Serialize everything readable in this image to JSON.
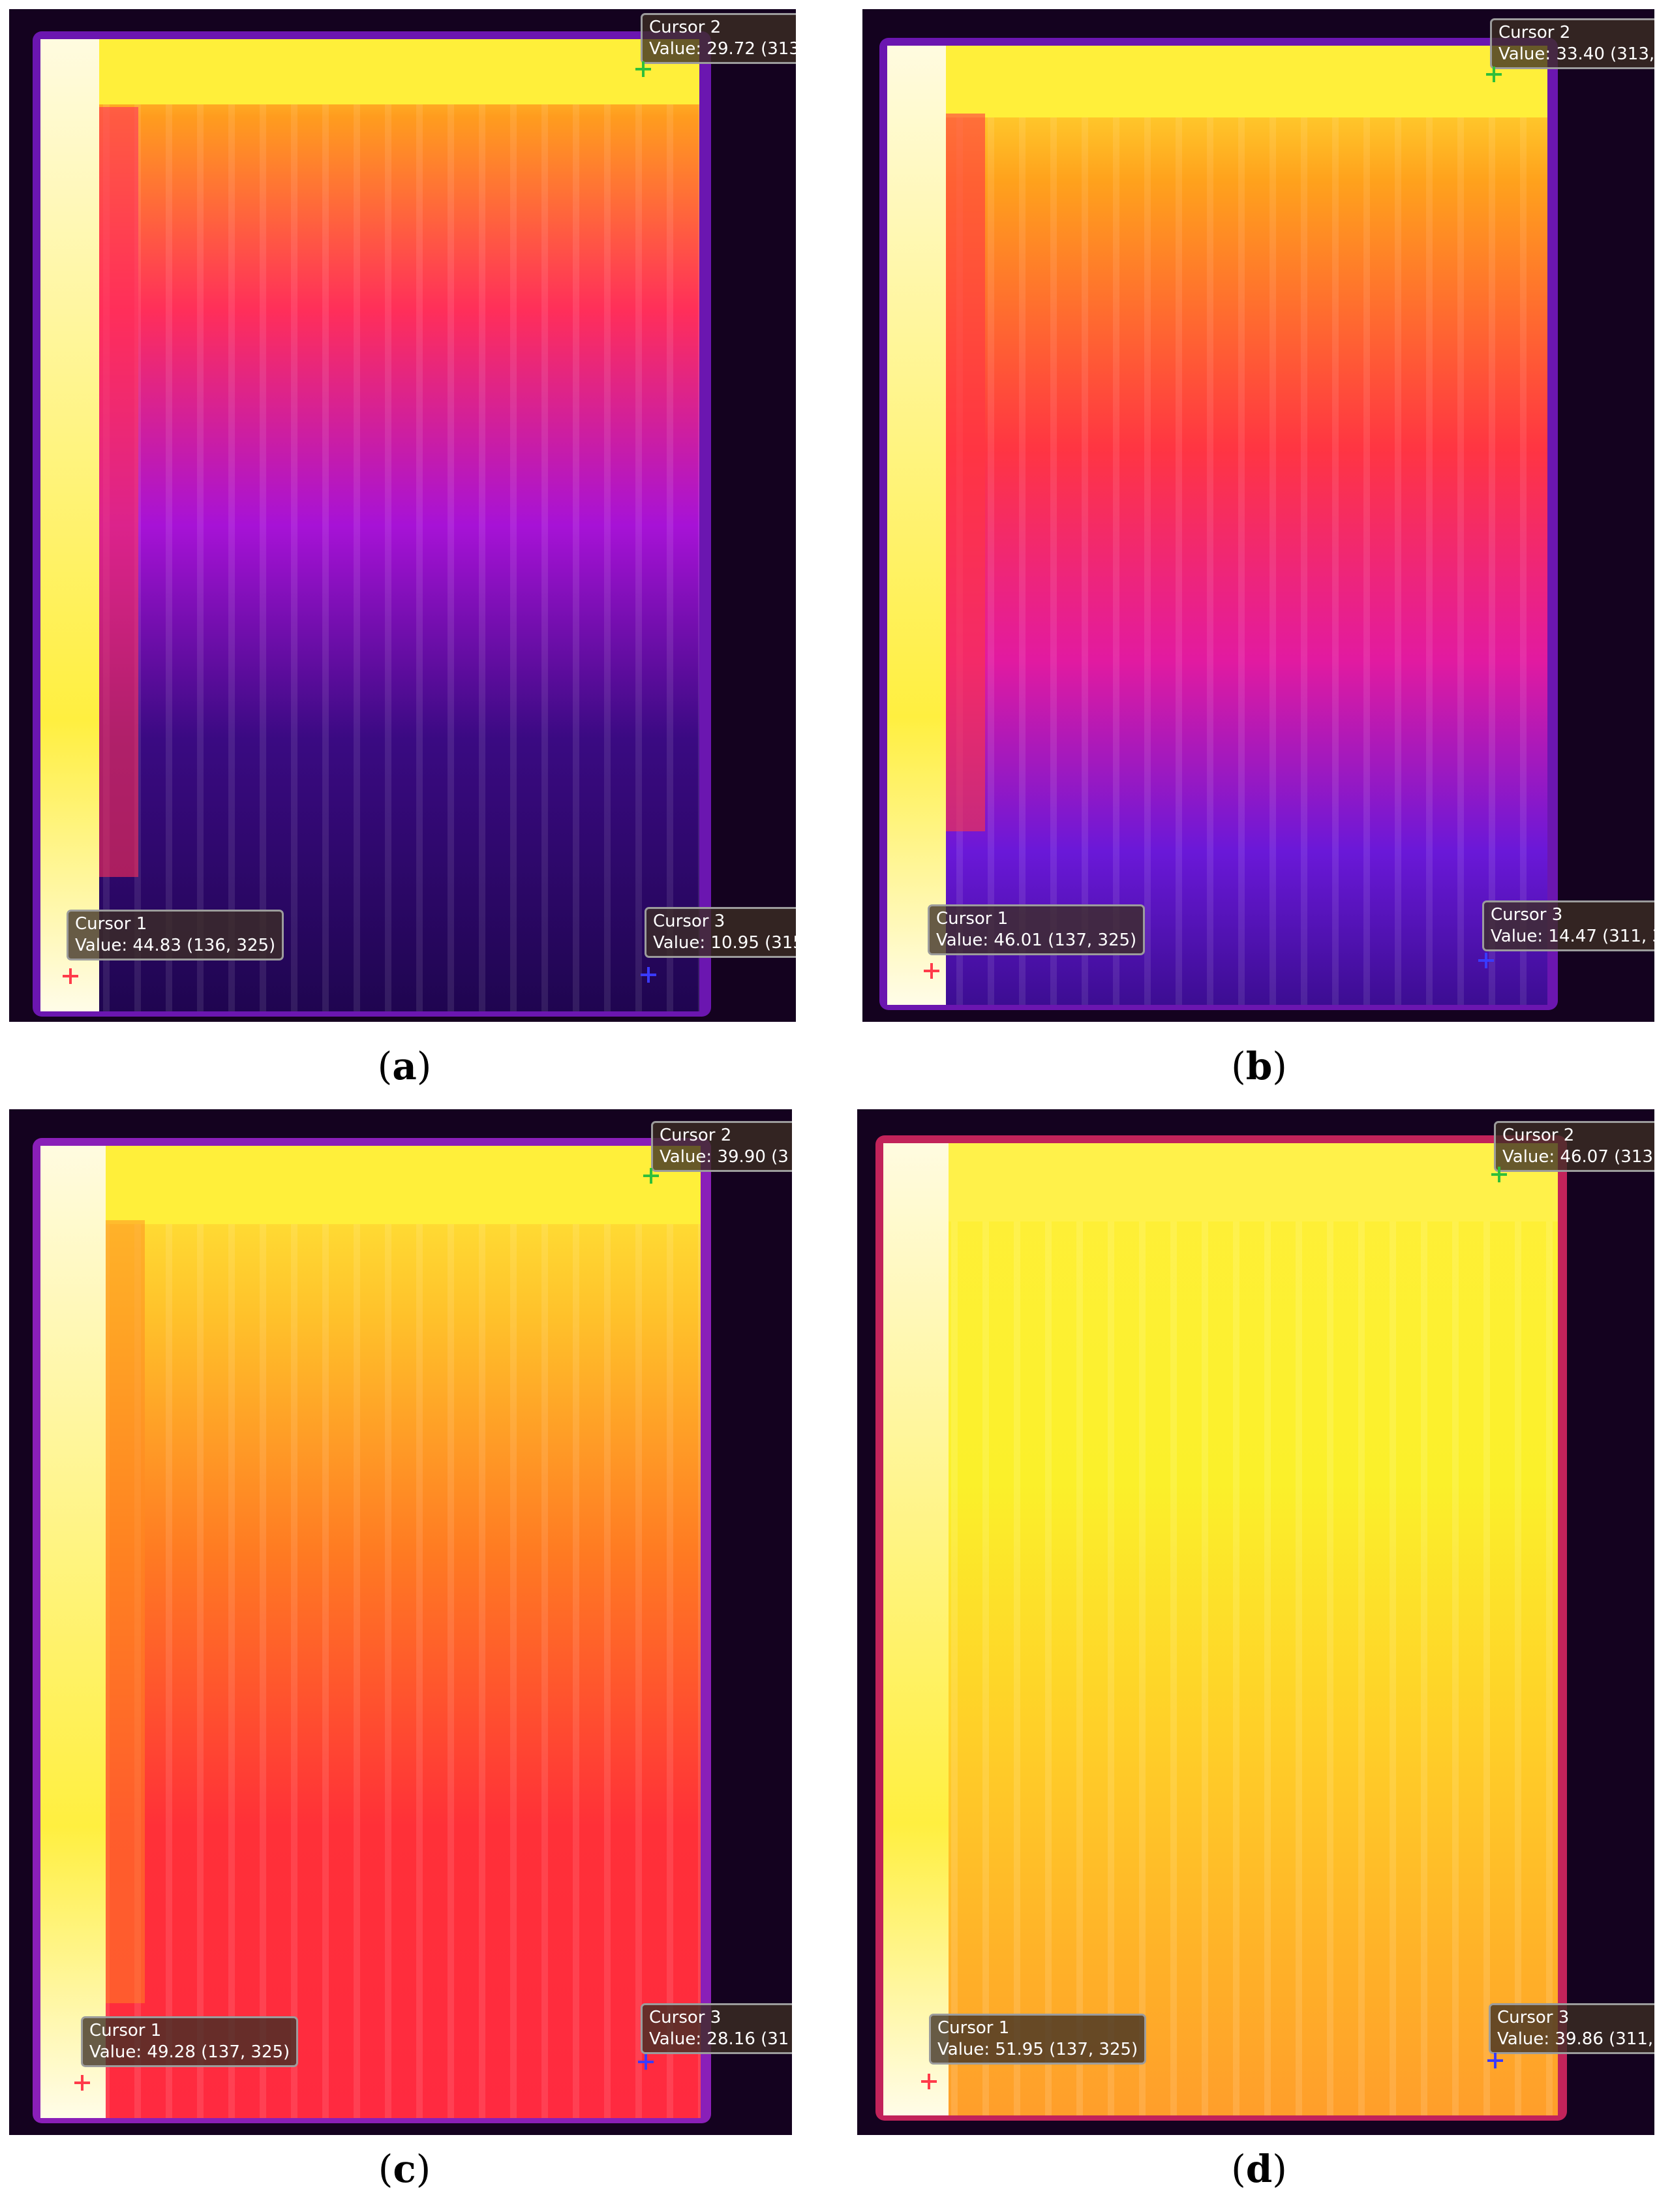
{
  "panels": [
    {
      "caption_letter": "a",
      "cursors": [
        {
          "name": "Cursor 1",
          "value": "Value: 44.83 (136, 325)"
        },
        {
          "name": "Cursor 2",
          "value": "Value: 29.72 (313,"
        },
        {
          "name": "Cursor 3",
          "value": "Value: 10.95 (315"
        }
      ]
    },
    {
      "caption_letter": "b",
      "cursors": [
        {
          "name": "Cursor 1",
          "value": "Value: 46.01 (137, 325)"
        },
        {
          "name": "Cursor 2",
          "value": "Value: 33.40 (313,"
        },
        {
          "name": "Cursor 3",
          "value": "Value: 14.47 (311, 3"
        }
      ]
    },
    {
      "caption_letter": "c",
      "cursors": [
        {
          "name": "Cursor 1",
          "value": "Value: 49.28 (137, 325)"
        },
        {
          "name": "Cursor 2",
          "value": "Value: 39.90 (3"
        },
        {
          "name": "Cursor 3",
          "value": "Value: 28.16 (31"
        }
      ]
    },
    {
      "caption_letter": "d",
      "cursors": [
        {
          "name": "Cursor 1",
          "value": "Value: 51.95 (137, 325)"
        },
        {
          "name": "Cursor 2",
          "value": "Value: 46.07 (313"
        },
        {
          "name": "Cursor 3",
          "value": "Value: 39.86 (311,"
        }
      ]
    }
  ],
  "colors": {
    "cursor1_marker": "#ff3b4a",
    "cursor2_marker": "#2fbf3a",
    "cursor3_marker": "#3a3aff"
  }
}
